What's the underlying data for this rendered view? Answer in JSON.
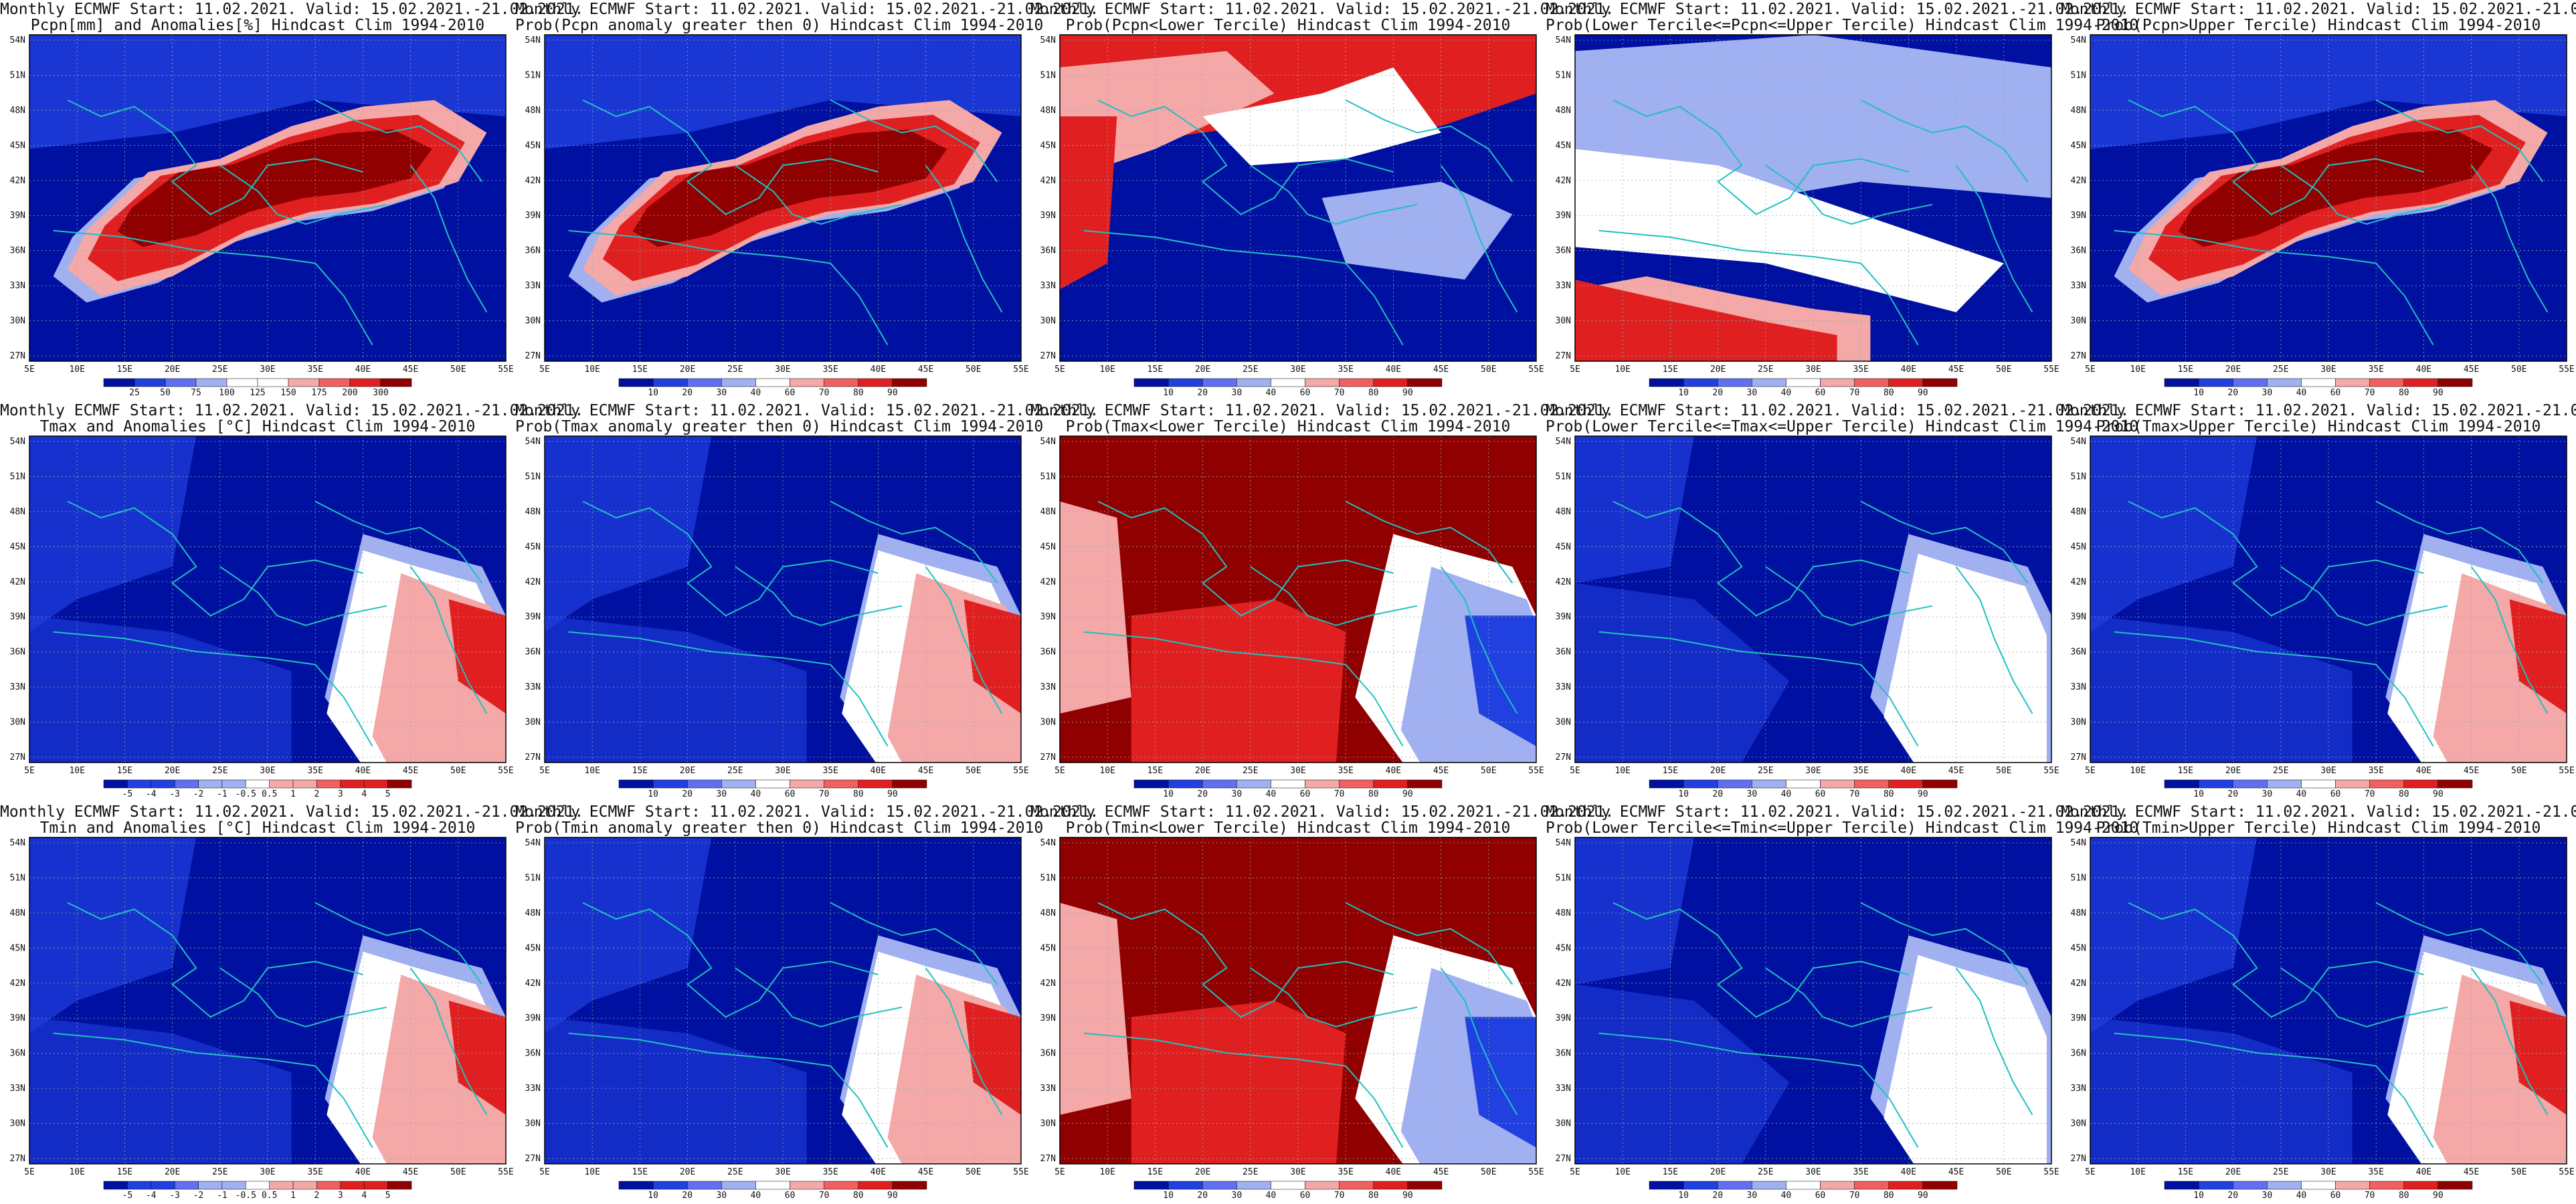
{
  "header": "Monthly ECMWF Start: 11.02.2021. Valid: 15.02.2021.-21.02.2021.",
  "lat_labels": [
    "54N",
    "51N",
    "48N",
    "45N",
    "42N",
    "39N",
    "36N",
    "33N",
    "30N",
    "27N"
  ],
  "lon_labels": [
    "5E",
    "10E",
    "15E",
    "20E",
    "25E",
    "30E",
    "35E",
    "40E",
    "45E",
    "50E",
    "55E"
  ],
  "prob_colorbar": [
    "10",
    "20",
    "30",
    "40",
    "60",
    "70",
    "80",
    "90"
  ],
  "colors": {
    "deep_blue": "#0010a0",
    "blue": "#2040e0",
    "light_blue": "#a0b0f0",
    "white": "#ffffff",
    "pink": "#f4a8a8",
    "red": "#e02020",
    "dark_red": "#900000",
    "coast": "#20c0c0"
  },
  "panels": [
    {
      "name": "pcpn-anomaly",
      "row": 0,
      "col": 0,
      "title2": "Pcpn[mm] and Anomalies[%] Hindcast Clim 1994-2010",
      "colorbar": [
        "25",
        "50",
        "75",
        "100",
        "125",
        "150",
        "175",
        "200",
        "300"
      ],
      "scheme": "pcpn"
    },
    {
      "name": "pcpn-prob-positive",
      "row": 0,
      "col": 1,
      "title2": "Prob(Pcpn anomaly greater then 0) Hindcast Clim 1994-2010",
      "colorbar": null,
      "scheme": "pcpn"
    },
    {
      "name": "pcpn-prob-lower",
      "row": 0,
      "col": 2,
      "title2": "Prob(Pcpn<Lower Tercile) Hindcast Clim 1994-2010",
      "colorbar": null,
      "scheme": "pcpnlow"
    },
    {
      "name": "pcpn-prob-middle",
      "row": 0,
      "col": 3,
      "title2": "Prob(Lower Tercile<=Pcpn<=Upper Tercile) Hindcast Clim 1994-2010",
      "colorbar": null,
      "scheme": "pcpnmid"
    },
    {
      "name": "pcpn-prob-upper",
      "row": 0,
      "col": 4,
      "title2": "Prob(Pcpn>Upper Tercile) Hindcast Clim 1994-2010",
      "colorbar": null,
      "scheme": "pcpn"
    },
    {
      "name": "tmax-anomaly",
      "row": 1,
      "col": 0,
      "title2": "Tmax and Anomalies [°C] Hindcast Clim 1994-2010",
      "colorbar": [
        "-5",
        "-4",
        "-3",
        "-2",
        "-1",
        "-0.5",
        "0.5",
        "1",
        "2",
        "3",
        "4",
        "5"
      ],
      "scheme": "tcold"
    },
    {
      "name": "tmax-prob-positive",
      "row": 1,
      "col": 1,
      "title2": "Prob(Tmax anomaly greater then 0) Hindcast Clim 1994-2010",
      "colorbar": null,
      "scheme": "tcold"
    },
    {
      "name": "tmax-prob-lower",
      "row": 1,
      "col": 2,
      "title2": "Prob(Tmax<Lower Tercile) Hindcast Clim 1994-2010",
      "colorbar": null,
      "scheme": "twarmlow"
    },
    {
      "name": "tmax-prob-middle",
      "row": 1,
      "col": 3,
      "title2": "Prob(Lower Tercile<=Tmax<=Upper Tercile) Hindcast Clim 1994-2010",
      "colorbar": null,
      "scheme": "tmid"
    },
    {
      "name": "tmax-prob-upper",
      "row": 1,
      "col": 4,
      "title2": "Prob(Tmax>Upper Tercile) Hindcast Clim 1994-2010",
      "colorbar": null,
      "scheme": "tcold"
    },
    {
      "name": "tmin-anomaly",
      "row": 2,
      "col": 0,
      "title2": "Tmin and Anomalies [°C] Hindcast Clim 1994-2010",
      "colorbar": [
        "-5",
        "-4",
        "-3",
        "-2",
        "-1",
        "-0.5",
        "0.5",
        "1",
        "2",
        "3",
        "4",
        "5"
      ],
      "scheme": "tcold"
    },
    {
      "name": "tmin-prob-positive",
      "row": 2,
      "col": 1,
      "title2": "Prob(Tmin anomaly greater then 0) Hindcast Clim 1994-2010",
      "colorbar": null,
      "scheme": "tcold"
    },
    {
      "name": "tmin-prob-lower",
      "row": 2,
      "col": 2,
      "title2": "Prob(Tmin<Lower Tercile) Hindcast Clim 1994-2010",
      "colorbar": null,
      "scheme": "twarmlow"
    },
    {
      "name": "tmin-prob-middle",
      "row": 2,
      "col": 3,
      "title2": "Prob(Lower Tercile<=Tmin<=Upper Tercile) Hindcast Clim 1994-2010",
      "colorbar": null,
      "scheme": "tmid"
    },
    {
      "name": "tmin-prob-upper",
      "row": 2,
      "col": 4,
      "title2": "Prob(Tmin>Upper Tercile) Hindcast Clim 1994-2010",
      "colorbar": null,
      "scheme": "tcold"
    }
  ]
}
